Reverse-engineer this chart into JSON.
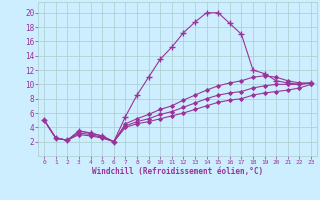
{
  "xlabel": "Windchill (Refroidissement éolien,°C)",
  "background_color": "#cceeff",
  "line_color": "#993399",
  "xlim": [
    -0.5,
    23.5
  ],
  "ylim": [
    0,
    21.5
  ],
  "xticks": [
    0,
    1,
    2,
    3,
    4,
    5,
    6,
    7,
    8,
    9,
    10,
    11,
    12,
    13,
    14,
    15,
    16,
    17,
    18,
    19,
    20,
    21,
    22,
    23
  ],
  "yticks": [
    2,
    4,
    6,
    8,
    10,
    12,
    14,
    16,
    18,
    20
  ],
  "grid_color": "#aacccc",
  "series": [
    {
      "x": [
        0,
        1,
        2,
        3,
        4,
        5,
        6,
        7,
        8,
        9,
        10,
        11,
        12,
        13,
        14,
        15,
        16,
        17,
        18,
        19,
        20,
        21,
        22,
        23
      ],
      "y": [
        5.0,
        2.5,
        2.2,
        3.5,
        3.2,
        2.8,
        2.0,
        5.5,
        8.5,
        11.0,
        13.5,
        15.2,
        17.2,
        18.7,
        20.0,
        20.0,
        18.5,
        17.0,
        12.0,
        11.5,
        10.5,
        10.2,
        10.0,
        10.2
      ],
      "marker": "+"
    },
    {
      "x": [
        0,
        1,
        2,
        3,
        4,
        5,
        6,
        7,
        8,
        9,
        10,
        11,
        12,
        13,
        14,
        15,
        16,
        17,
        18,
        19,
        20,
        21,
        22,
        23
      ],
      "y": [
        5.0,
        2.5,
        2.2,
        3.5,
        3.2,
        2.8,
        2.0,
        4.5,
        5.2,
        5.8,
        6.5,
        7.0,
        7.8,
        8.5,
        9.2,
        9.8,
        10.2,
        10.5,
        11.0,
        11.2,
        11.0,
        10.5,
        10.2,
        10.2
      ],
      "marker": "D"
    },
    {
      "x": [
        0,
        1,
        2,
        3,
        4,
        5,
        6,
        7,
        8,
        9,
        10,
        11,
        12,
        13,
        14,
        15,
        16,
        17,
        18,
        19,
        20,
        21,
        22,
        23
      ],
      "y": [
        5.0,
        2.5,
        2.2,
        3.2,
        3.0,
        2.6,
        2.0,
        4.2,
        4.8,
        5.2,
        5.8,
        6.2,
        6.8,
        7.4,
        8.0,
        8.5,
        8.8,
        9.0,
        9.5,
        9.8,
        10.0,
        10.0,
        10.0,
        10.2
      ],
      "marker": "D"
    },
    {
      "x": [
        0,
        1,
        2,
        3,
        4,
        5,
        6,
        7,
        8,
        9,
        10,
        11,
        12,
        13,
        14,
        15,
        16,
        17,
        18,
        19,
        20,
        21,
        22,
        23
      ],
      "y": [
        5.0,
        2.5,
        2.2,
        3.0,
        2.8,
        2.5,
        2.0,
        4.0,
        4.5,
        4.8,
        5.2,
        5.6,
        6.0,
        6.5,
        7.0,
        7.5,
        7.8,
        8.0,
        8.5,
        8.8,
        9.0,
        9.2,
        9.5,
        10.0
      ],
      "marker": "D"
    }
  ]
}
